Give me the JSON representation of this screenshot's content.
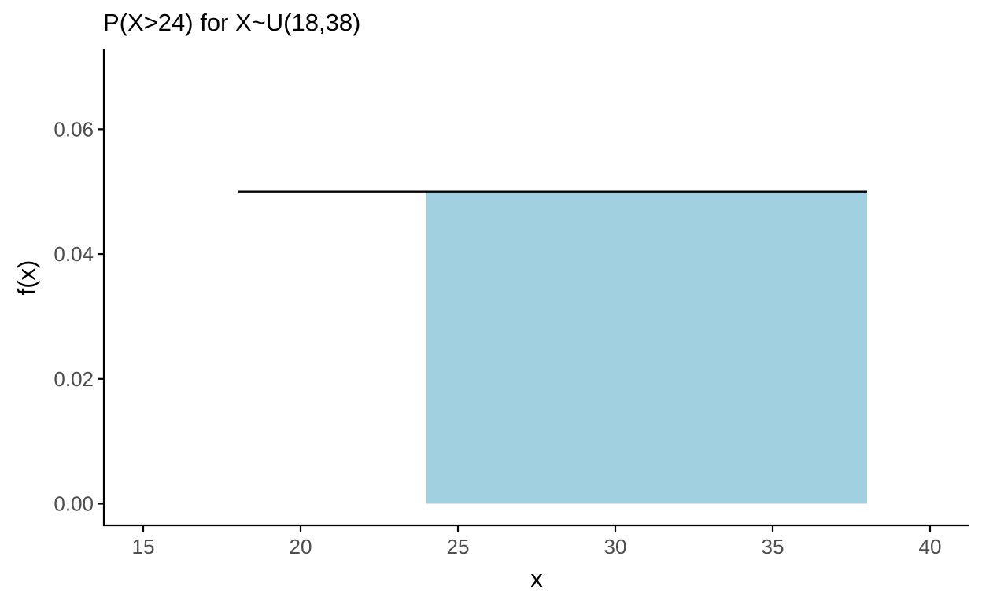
{
  "chart_data": {
    "type": "area",
    "title": "P(X>24) for X~U(18,38)",
    "xlabel": "x",
    "ylabel": "f(x)",
    "xlim": [
      13.75,
      41.25
    ],
    "ylim": [
      -0.00347,
      0.0729
    ],
    "x_ticks": [
      15,
      20,
      25,
      30,
      35,
      40
    ],
    "x_tick_labels": [
      "15",
      "20",
      "25",
      "30",
      "35",
      "40"
    ],
    "y_ticks": [
      0.0,
      0.02,
      0.04,
      0.06
    ],
    "y_tick_labels": [
      "0.00",
      "0.02",
      "0.04",
      "0.06"
    ],
    "grid": false,
    "density_line": {
      "x": [
        18,
        38
      ],
      "y": [
        0.05,
        0.05
      ],
      "color": "#000000"
    },
    "shaded_region": {
      "x": [
        24,
        38
      ],
      "y": [
        0.05,
        0.05
      ],
      "color": "#a1d1e1"
    }
  }
}
